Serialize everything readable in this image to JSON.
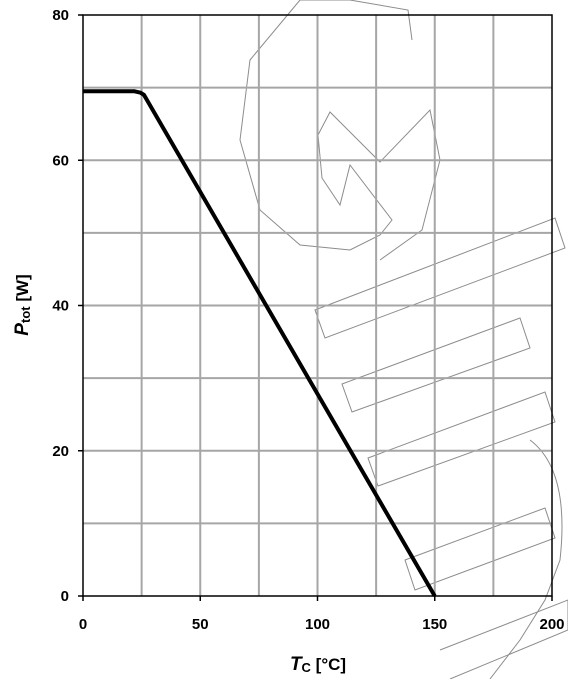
{
  "chart_data": {
    "type": "line",
    "title": "",
    "xlabel": {
      "symbol": "T",
      "subscript": "C",
      "unit": " [°C]"
    },
    "ylabel": {
      "symbol": "P",
      "subscript": "tot",
      "unit": " [W]"
    },
    "xlim": [
      0,
      200
    ],
    "ylim": [
      0,
      80
    ],
    "x_ticks": [
      0,
      50,
      100,
      150,
      200
    ],
    "y_ticks": [
      0,
      20,
      40,
      60,
      80
    ],
    "x_minor_step": 25,
    "y_minor_step": 10,
    "grid": true,
    "series": [
      {
        "x": [
          0,
          22,
          24.5,
          26,
          150
        ],
        "y": [
          69.5,
          69.5,
          69.3,
          69,
          0
        ],
        "color": "#000000"
      }
    ]
  }
}
